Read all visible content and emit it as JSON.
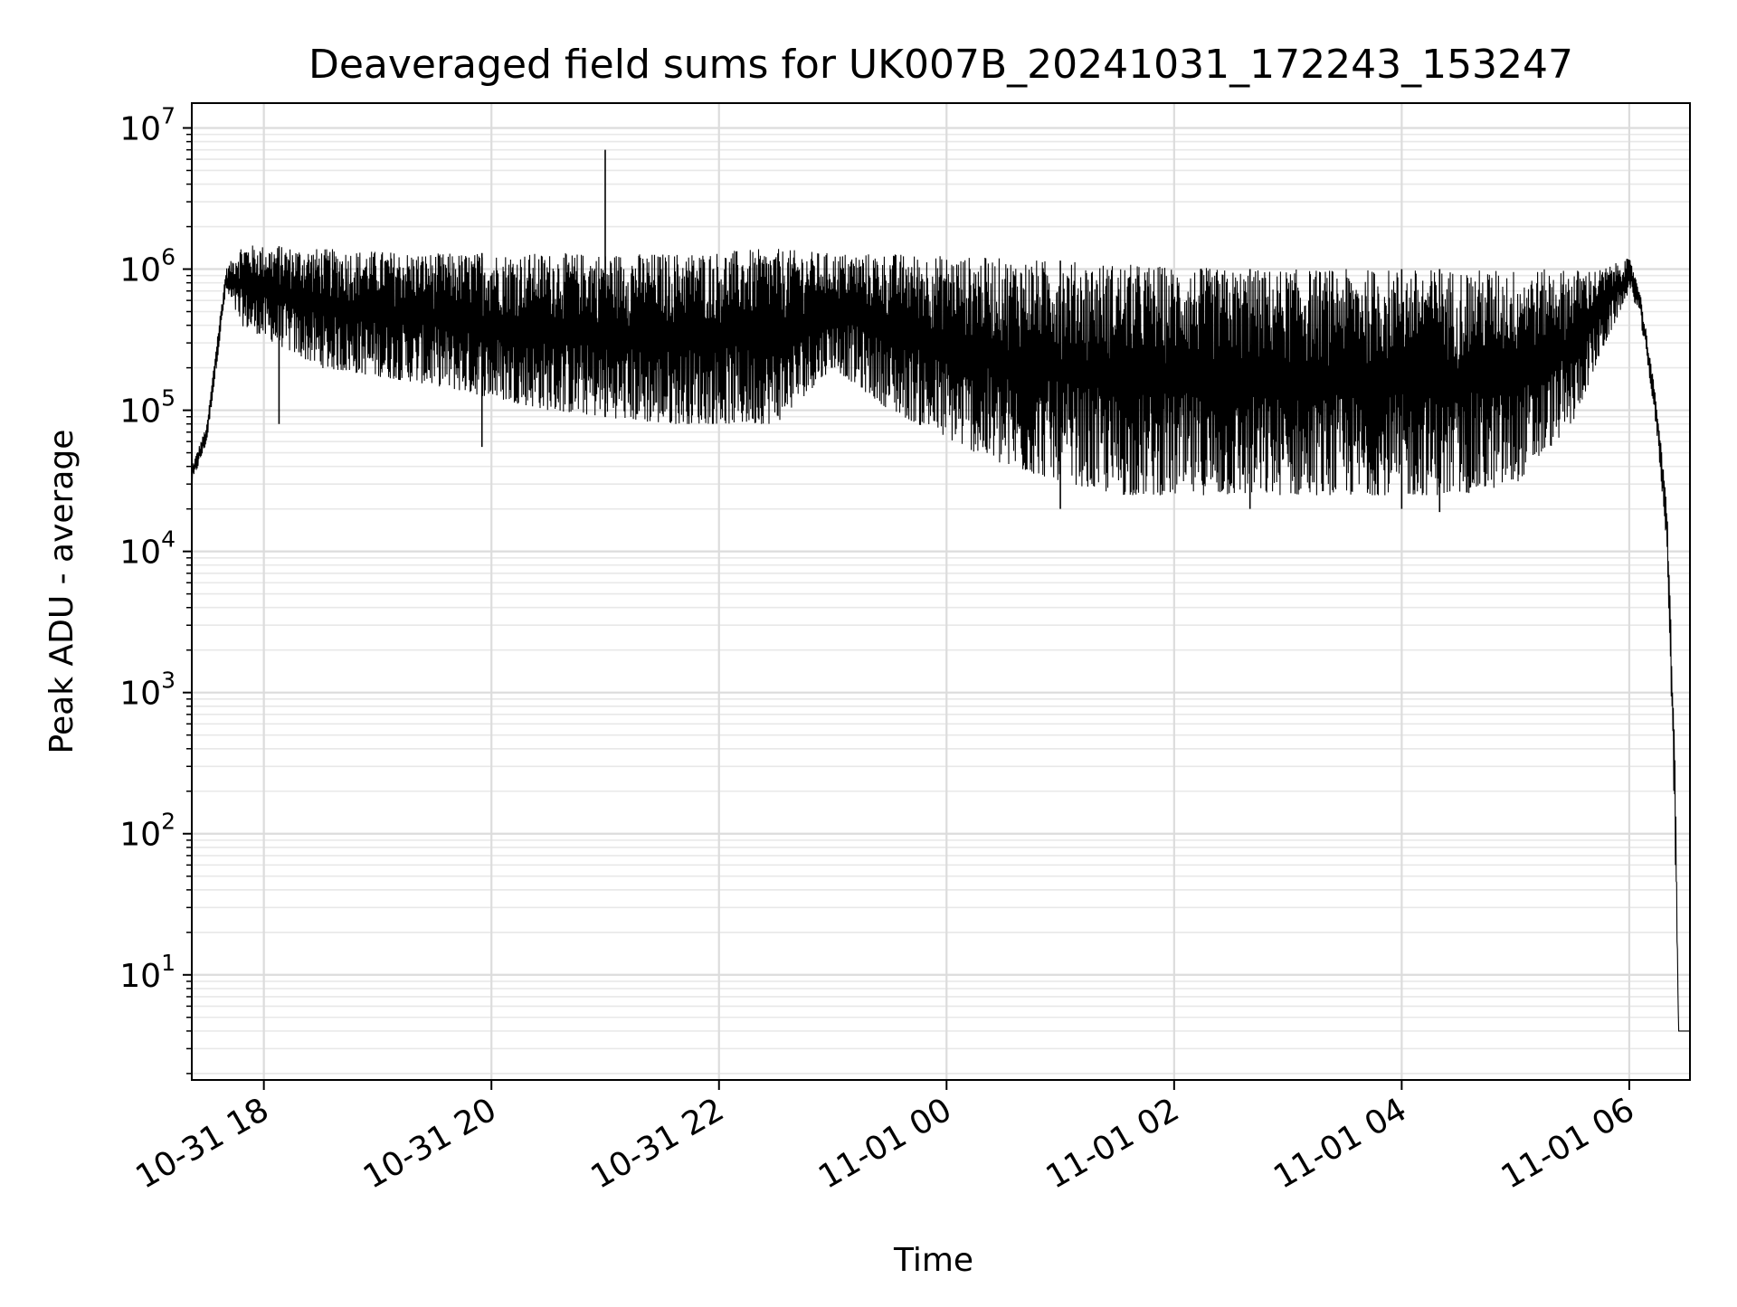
{
  "chart_data": {
    "type": "line",
    "title": "Deaveraged field sums for UK007B_20241031_172243_153247",
    "xlabel": "Time",
    "ylabel": "Peak ADU - average",
    "y_scale": "log",
    "ylim": [
      1.8,
      15000000
    ],
    "xlim": [
      "2024-10-31 17:22",
      "2024-11-01 06:32"
    ],
    "grid": true,
    "x_ticks": [
      {
        "value": "2024-10-31 18:00",
        "label": "10-31 18"
      },
      {
        "value": "2024-10-31 20:00",
        "label": "10-31 20"
      },
      {
        "value": "2024-10-31 22:00",
        "label": "10-31 22"
      },
      {
        "value": "2024-11-01 00:00",
        "label": "11-01 00"
      },
      {
        "value": "2024-11-01 02:00",
        "label": "11-01 02"
      },
      {
        "value": "2024-11-01 04:00",
        "label": "11-01 04"
      },
      {
        "value": "2024-11-01 06:00",
        "label": "11-01 06"
      }
    ],
    "y_ticks": [
      {
        "value": 10,
        "base": "10",
        "exp": "1"
      },
      {
        "value": 100,
        "base": "10",
        "exp": "2"
      },
      {
        "value": 1000,
        "base": "10",
        "exp": "3"
      },
      {
        "value": 10000,
        "base": "10",
        "exp": "4"
      },
      {
        "value": 100000,
        "base": "10",
        "exp": "5"
      },
      {
        "value": 1000000,
        "base": "10",
        "exp": "6"
      },
      {
        "value": 10000000,
        "base": "10",
        "exp": "7"
      }
    ],
    "series": [
      {
        "color": "#000000",
        "envelope": {
          "x": [
            "2024-10-31 17:22",
            "2024-10-31 17:30",
            "2024-10-31 17:35",
            "2024-10-31 17:40",
            "2024-10-31 17:48",
            "2024-10-31 18:30",
            "2024-10-31 19:30",
            "2024-10-31 20:30",
            "2024-10-31 21:30",
            "2024-10-31 22:30",
            "2024-10-31 23:00",
            "2024-10-31 23:30",
            "2024-11-01 00:30",
            "2024-11-01 01:30",
            "2024-11-01 02:30",
            "2024-11-01 03:30",
            "2024-11-01 04:30",
            "2024-11-01 05:00",
            "2024-11-01 05:30",
            "2024-11-01 05:45",
            "2024-11-01 06:00",
            "2024-11-01 06:05",
            "2024-11-01 06:10",
            "2024-11-01 06:15",
            "2024-11-01 06:20",
            "2024-11-01 06:24",
            "2024-11-01 06:26",
            "2024-11-01 06:32"
          ],
          "upper": [
            40000,
            80000,
            300000,
            1000000,
            1500000,
            1400000,
            1300000,
            1300000,
            1300000,
            1400000,
            1300000,
            1300000,
            1200000,
            1100000,
            1000000,
            1000000,
            1000000,
            1000000,
            1000000,
            1000000,
            1200000,
            800000,
            300000,
            100000,
            20000,
            500,
            4,
            4
          ],
          "lower": [
            30000,
            60000,
            200000,
            700000,
            400000,
            200000,
            150000,
            100000,
            80000,
            80000,
            200000,
            100000,
            40000,
            25000,
            25000,
            25000,
            25000,
            30000,
            80000,
            250000,
            700000,
            500000,
            200000,
            60000,
            10000,
            100,
            4,
            4
          ]
        },
        "spikes": [
          {
            "x": "2024-10-31 21:00",
            "y": 7000000
          },
          {
            "x": "2024-10-31 18:08",
            "y": 80000
          },
          {
            "x": "2024-10-31 19:55",
            "y": 55000
          },
          {
            "x": "2024-11-01 01:00",
            "y": 20000
          },
          {
            "x": "2024-11-01 02:40",
            "y": 20000
          },
          {
            "x": "2024-11-01 04:00",
            "y": 20000
          },
          {
            "x": "2024-11-01 04:20",
            "y": 19000
          }
        ]
      }
    ]
  }
}
